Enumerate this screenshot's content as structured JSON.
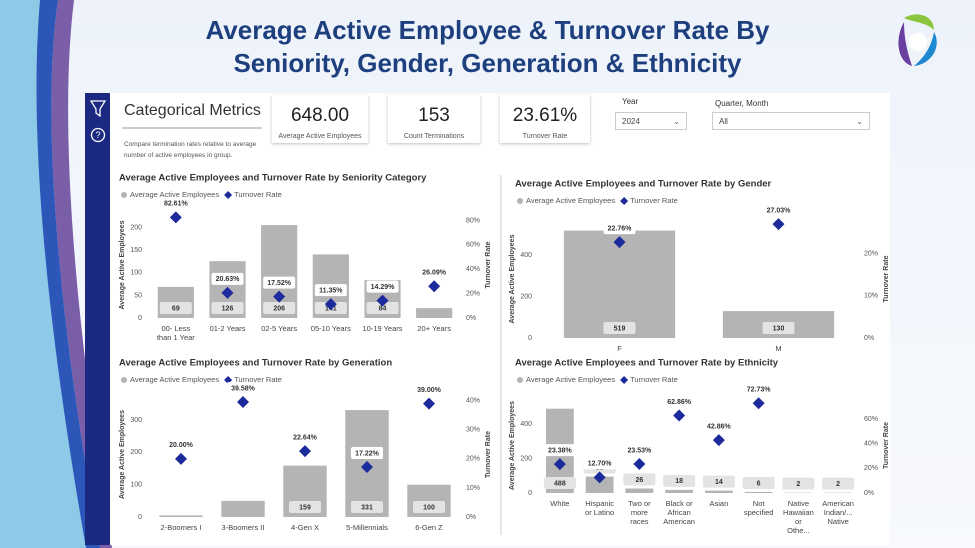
{
  "header": {
    "title_lines": [
      "Average Active Employee & Turnover Rate By",
      "Seniority, Gender, Generation & Ethnicity"
    ]
  },
  "panel": {
    "title": "Categorical Metrics",
    "description": "Compare termination rates relative to average number of active employees in group."
  },
  "kpis": [
    {
      "value": "648.00",
      "label": "Average Active Employees"
    },
    {
      "value": "153",
      "label": "Count Terminations"
    },
    {
      "value": "23.61%",
      "label": "Turnover Rate"
    }
  ],
  "slicers": [
    {
      "label": "Year",
      "value": "2024"
    },
    {
      "label": "Quarter, Month",
      "value": "All"
    }
  ],
  "chart_data": [
    {
      "type": "combo",
      "title": "Average Active Employees and Turnover Rate by Seniority Category",
      "categories": [
        "00- Less than 1 Year",
        "01-2 Years",
        "02-5 Years",
        "05-10 Years",
        "10-19 Years",
        "20+ Years"
      ],
      "series": [
        {
          "name": "Average Active Employees",
          "color": "#b4b4b4",
          "values": [
            69,
            126,
            206,
            141,
            84,
            22
          ],
          "value_labels": [
            "69",
            "126",
            "206",
            "141",
            "84",
            null
          ]
        },
        {
          "name": "Turnover Rate",
          "color": "#1c2a9c",
          "axis": "y2",
          "values": [
            82.61,
            20.63,
            17.52,
            11.35,
            14.29,
            26.09
          ],
          "value_labels": [
            "82.61%",
            "20.63%",
            "17.52%",
            "11.35%",
            "14.29%",
            "26.09%"
          ]
        }
      ],
      "ylabel": "Average Active Employees",
      "y2label": "Turnover Rate",
      "ylim": [
        0,
        235
      ],
      "yticks": [
        0,
        50,
        100,
        150,
        200
      ],
      "y2lim": [
        0,
        87
      ],
      "y2ticks": [
        {
          "value": 0,
          "label": "0%"
        },
        {
          "value": 20,
          "label": "20%"
        },
        {
          "value": 40,
          "label": "40%"
        },
        {
          "value": 60,
          "label": "60%"
        },
        {
          "value": 80,
          "label": "80%"
        }
      ]
    },
    {
      "type": "combo",
      "title": "Average Active Employees and Turnover Rate by Gender",
      "categories": [
        "F",
        "M"
      ],
      "series": [
        {
          "name": "Average Active Employees",
          "color": "#b4b4b4",
          "values": [
            519,
            130
          ]
        },
        {
          "name": "Turnover Rate",
          "color": "#1c2a9c",
          "axis": "y2",
          "values": [
            22.76,
            27.03
          ],
          "value_labels": [
            "22.76%",
            "27.03%"
          ]
        }
      ],
      "ylabel": "Average Active Employees",
      "y2label": "Turnover Rate",
      "ylim": [
        0,
        570
      ],
      "yticks": [
        0,
        200,
        400
      ],
      "y2lim": [
        0,
        28
      ],
      "y2ticks": [
        {
          "value": 0,
          "label": "0%"
        },
        {
          "value": 10,
          "label": "10%"
        },
        {
          "value": 20,
          "label": "20%"
        }
      ]
    },
    {
      "type": "combo",
      "title": "Average Active Employees and Turnover Rate by Generation",
      "categories": [
        "2-Boomers I",
        "3-Boomers II",
        "4-Gen X",
        "5-Millennials",
        "6-Gen Z"
      ],
      "series": [
        {
          "name": "Average Active Employees",
          "color": "#b4b4b4",
          "values": [
            5,
            50,
            159,
            331,
            100
          ],
          "value_labels": [
            null,
            null,
            "159",
            "331",
            "100"
          ]
        },
        {
          "name": "Turnover Rate",
          "color": "#1c2a9c",
          "axis": "y2",
          "values": [
            20.0,
            39.58,
            22.64,
            17.22,
            39.0
          ],
          "value_labels": [
            "20.00%",
            "39.58%",
            "22.64%",
            "17.22%",
            "39.00%"
          ]
        }
      ],
      "ylabel": "Average Active Employees",
      "y2label": "Turnover Rate",
      "ylim": [
        0,
        387
      ],
      "yticks": [
        0,
        100,
        200,
        300
      ],
      "y2lim": [
        0,
        43
      ],
      "y2ticks": [
        {
          "value": 0,
          "label": "0%"
        },
        {
          "value": 10,
          "label": "10%"
        },
        {
          "value": 20,
          "label": "20%"
        },
        {
          "value": 30,
          "label": "30%"
        },
        {
          "value": 40,
          "label": "40%"
        }
      ]
    },
    {
      "type": "combo",
      "title": "Average Active Employees and Turnover Rate by Ethnicity",
      "categories": [
        "White",
        "Hispanic or Latino",
        "Two or more races",
        "Black or African American",
        "Asian",
        "Not specified",
        "Native Hawaiian or Othe...",
        "American Indian/... Native"
      ],
      "series": [
        {
          "name": "Average Active Employees",
          "color": "#b4b4b4",
          "values": [
            488,
            95,
            26,
            18,
            14,
            6,
            2,
            2
          ]
        },
        {
          "name": "Turnover Rate",
          "color": "#1c2a9c",
          "axis": "y2",
          "values": [
            23.38,
            12.7,
            23.53,
            62.86,
            42.86,
            72.73,
            null,
            null
          ],
          "value_labels": [
            "23.38%",
            "12.70%",
            "23.53%",
            "62.86%",
            "42.86%",
            "72.73%",
            null,
            null
          ]
        }
      ],
      "ylabel": "Average Active Employees",
      "y2label": "Turnover Rate",
      "ylim": [
        0,
        550
      ],
      "yticks": [
        0,
        200,
        400
      ],
      "y2lim": [
        0,
        77
      ],
      "y2ticks": [
        {
          "value": 0,
          "label": "0%"
        },
        {
          "value": 20,
          "label": "20%"
        },
        {
          "value": 40,
          "label": "40%"
        },
        {
          "value": 60,
          "label": "60%"
        }
      ]
    }
  ]
}
